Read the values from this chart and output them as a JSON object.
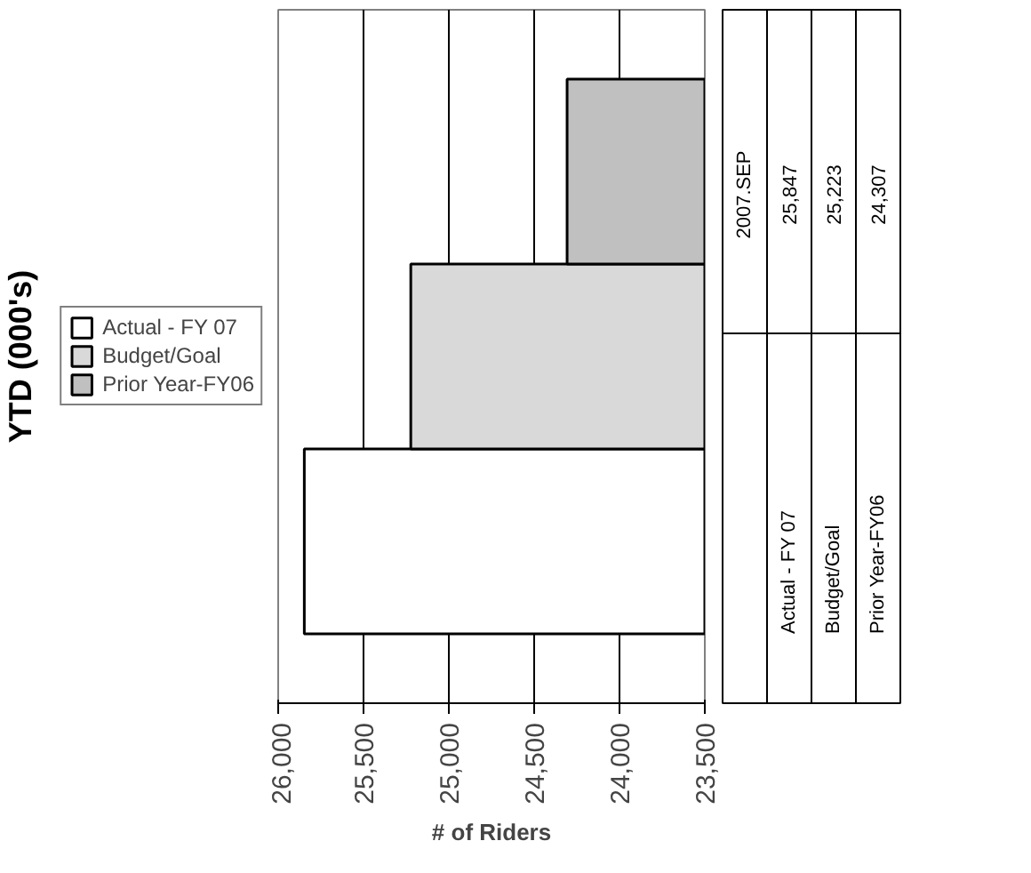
{
  "chart_data": {
    "type": "bar",
    "orientation": "horizontal",
    "title": "YTD (000's)",
    "xlabel": "# of Riders",
    "categories": [
      "2007.SEP"
    ],
    "series": [
      {
        "name": "Actual - FY 07",
        "color": "#ffffff",
        "values": [
          25847
        ]
      },
      {
        "name": "Budget/Goal",
        "color": "#d9d9d9",
        "values": [
          25223
        ]
      },
      {
        "name": "Prior Year-FY06",
        "color": "#c0c0c0",
        "values": [
          24307
        ]
      }
    ],
    "xlim": [
      26000,
      23500
    ],
    "xticks": [
      {
        "value": 26000,
        "label": "26,000"
      },
      {
        "value": 25500,
        "label": "25,500"
      },
      {
        "value": 25000,
        "label": "25,000"
      },
      {
        "value": 24500,
        "label": "24,500"
      },
      {
        "value": 24000,
        "label": "24,000"
      },
      {
        "value": 23500,
        "label": "23,500"
      }
    ],
    "grid": "x",
    "legend": "left",
    "value_labels": [
      "25,847",
      "25,223",
      "24,307"
    ]
  }
}
